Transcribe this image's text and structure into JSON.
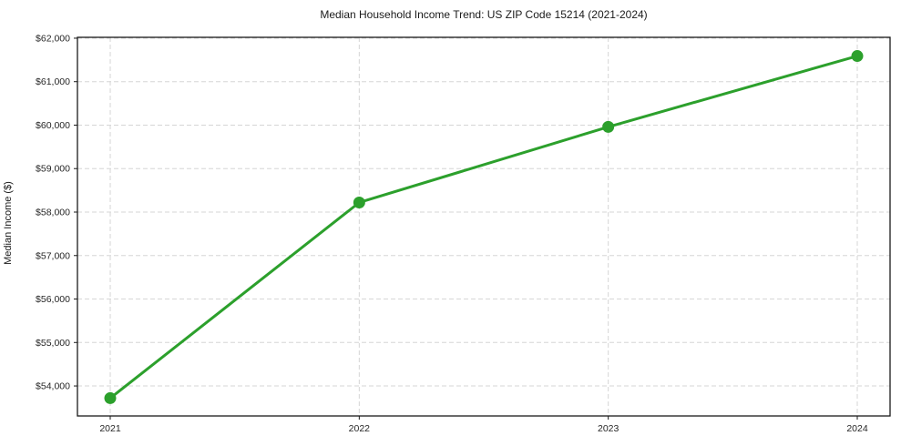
{
  "chart_data": {
    "type": "line",
    "title": "Median Household Income Trend: US ZIP Code 15214 (2021-2024)",
    "xlabel": "",
    "ylabel": "Median Income ($)",
    "series_name": "Median Household Income",
    "x": [
      "2021",
      "2022",
      "2023",
      "2024"
    ],
    "values": [
      53720,
      58220,
      59960,
      61590
    ],
    "ylim": [
      53310,
      62020
    ],
    "yticks": [
      54000,
      55000,
      56000,
      57000,
      58000,
      59000,
      60000,
      61000,
      62000
    ],
    "ytick_labels": [
      "$54,000",
      "$55,000",
      "$56,000",
      "$57,000",
      "$58,000",
      "$59,000",
      "$60,000",
      "$61,000",
      "$62,000"
    ],
    "grid": "dashed-both-axes",
    "legend": "none",
    "colors": {
      "line": "#2ca02c",
      "marker": "#2ca02c",
      "grid": "#d6d6d6",
      "axis": "#1a1a1a",
      "text": "#262626",
      "background": "#ffffff"
    }
  }
}
